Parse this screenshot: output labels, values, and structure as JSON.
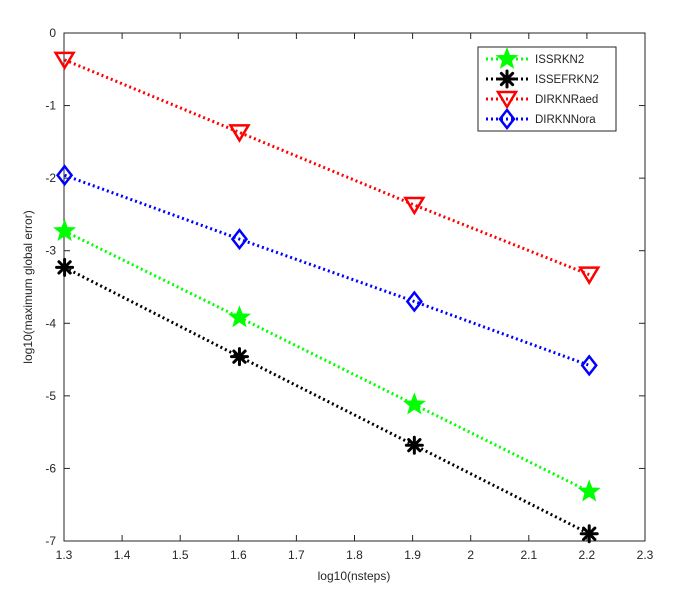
{
  "chart_data": {
    "type": "line",
    "title": "",
    "xlabel": "log10(nsteps)",
    "ylabel": "log10(maximum global error)",
    "xlim": [
      1.3,
      2.3
    ],
    "ylim": [
      -7,
      0
    ],
    "xticks": [
      1.3,
      1.4,
      1.5,
      1.6,
      1.7,
      1.8,
      1.9,
      2,
      2.1,
      2.2,
      2.3
    ],
    "xtick_labels": [
      "1.3",
      "1.4",
      "1.5",
      "1.6",
      "1.7",
      "1.8",
      "1.9",
      "2",
      "2.1",
      "2.2",
      "2.3"
    ],
    "yticks": [
      0,
      -1,
      -2,
      -3,
      -4,
      -5,
      -6,
      -7
    ],
    "ytick_labels": [
      "0",
      "-1",
      "-2",
      "-3",
      "-4",
      "-5",
      "-6",
      "-7"
    ],
    "grid": false,
    "legend_position": "top-right",
    "x": [
      1.301,
      1.602,
      1.903,
      2.204
    ],
    "series": [
      {
        "name": "ISSRKN2",
        "color": "#00ff00",
        "marker": "pentagram",
        "values": [
          -2.73,
          -3.92,
          -5.12,
          -6.32
        ]
      },
      {
        "name": "ISSEFRKN2",
        "color": "#000000",
        "marker": "asterisk",
        "values": [
          -3.23,
          -4.46,
          -5.68,
          -6.9
        ]
      },
      {
        "name": "DIRKNRaed",
        "color": "#ff0000",
        "marker": "triangle-down",
        "values": [
          -0.37,
          -1.37,
          -2.37,
          -3.33
        ]
      },
      {
        "name": "DIRKNNora",
        "color": "#0000ff",
        "marker": "diamond",
        "values": [
          -1.96,
          -2.84,
          -3.7,
          -4.58
        ]
      }
    ]
  }
}
